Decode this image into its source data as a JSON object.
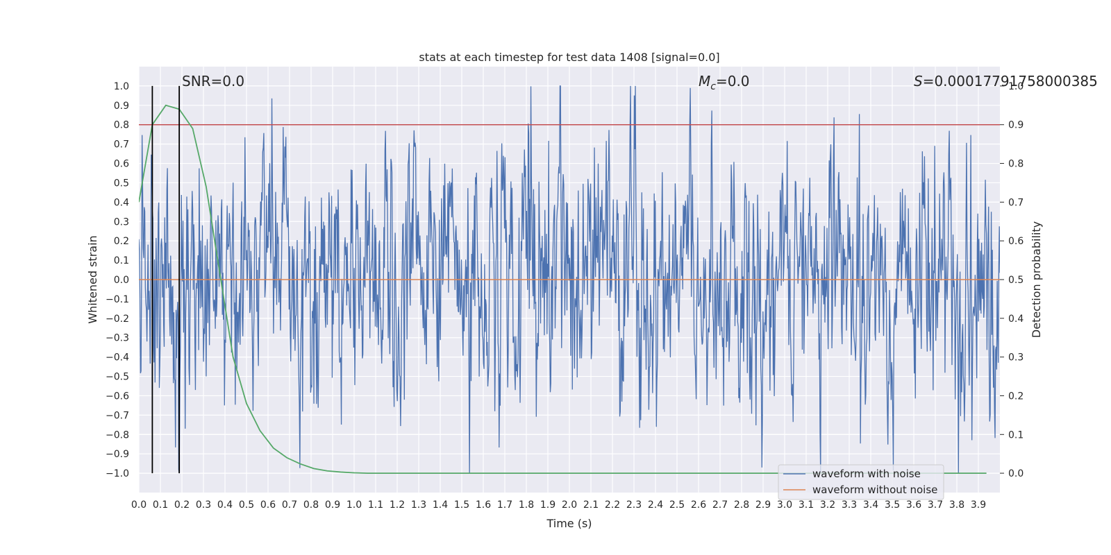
{
  "chart_data": {
    "type": "line",
    "title": "stats at each timestep for test data 1408 [signal=0.0]",
    "xlabel": "Time (s)",
    "ylabel": "Whitened strain",
    "y2label": "Detection probability",
    "xlim": [
      0.0,
      4.0
    ],
    "ylim": [
      -1.1,
      1.1
    ],
    "y2lim": [
      -0.05,
      1.05
    ],
    "grid": true,
    "legend_position": "bottom-right",
    "x_ticks": [
      0.0,
      0.1,
      0.2,
      0.3,
      0.4,
      0.5,
      0.6,
      0.7,
      0.8,
      0.9,
      1.0,
      1.1,
      1.2,
      1.3,
      1.4,
      1.5,
      1.6,
      1.7,
      1.8,
      1.9,
      2.0,
      2.1,
      2.2,
      2.3,
      2.4,
      2.5,
      2.6,
      2.7,
      2.8,
      2.9,
      3.0,
      3.1,
      3.2,
      3.3,
      3.4,
      3.5,
      3.6,
      3.7,
      3.8,
      3.9
    ],
    "x_tick_labels": [
      "0.0",
      "0.1",
      "0.2",
      "0.3",
      "0.4",
      "0.5",
      "0.6",
      "0.7",
      "0.8",
      "0.9",
      "1.0",
      "1.1",
      "1.2",
      "1.3",
      "1.4",
      "1.5",
      "1.6",
      "1.7",
      "1.8",
      "1.9",
      "2.0",
      "2.1",
      "2.2",
      "2.3",
      "2.4",
      "2.5",
      "2.6",
      "2.7",
      "2.8",
      "2.9",
      "3.0",
      "3.1",
      "3.2",
      "3.3",
      "3.4",
      "3.5",
      "3.6",
      "3.7",
      "3.8",
      "3.9"
    ],
    "y_ticks": [
      1.0,
      0.9,
      0.8,
      0.7,
      0.6,
      0.5,
      0.4,
      0.3,
      0.2,
      0.1,
      0.0,
      -0.1,
      -0.2,
      -0.3,
      -0.4,
      -0.5,
      -0.6,
      -0.7,
      -0.8,
      -0.9,
      -1.0
    ],
    "y_tick_labels": [
      "1.0",
      "0.9",
      "0.8",
      "0.7",
      "0.6",
      "0.5",
      "0.4",
      "0.3",
      "0.2",
      "0.1",
      "0.0",
      "−0.1",
      "−0.2",
      "−0.3",
      "−0.4",
      "−0.5",
      "−0.6",
      "−0.7",
      "−0.8",
      "−0.9",
      "−1.0"
    ],
    "y2_ticks": [
      1.0,
      0.9,
      0.8,
      0.7,
      0.6,
      0.5,
      0.4,
      0.3,
      0.2,
      0.1,
      0.0
    ],
    "y2_tick_labels": [
      "1.0",
      "0.9",
      "0.8",
      "0.7",
      "0.6",
      "0.5",
      "0.4",
      "0.3",
      "0.2",
      "0.1",
      "0.0"
    ],
    "series": [
      {
        "name": "waveform with noise",
        "color": "#4c72b0",
        "axis": "left",
        "style": "noise",
        "t_start": 0.0,
        "t_end": 4.0,
        "n_samples": 1600,
        "seed": 1408,
        "typical_amplitude": 0.35,
        "max_abs": 1.0
      },
      {
        "name": "waveform without noise",
        "color": "#dd8452",
        "axis": "left",
        "style": "line",
        "x": [
          0.0,
          4.0
        ],
        "y": [
          0.0,
          0.0
        ]
      },
      {
        "name": "detection probability",
        "color": "#55a868",
        "axis": "right",
        "style": "line",
        "x": [
          0.0,
          0.0625,
          0.125,
          0.1875,
          0.25,
          0.3125,
          0.375,
          0.4375,
          0.5,
          0.5625,
          0.625,
          0.6875,
          0.75,
          0.8125,
          0.875,
          0.9375,
          1.0,
          1.0625,
          1.125,
          1.5,
          2.0,
          2.5,
          3.0,
          3.5,
          3.9375
        ],
        "y": [
          0.7,
          0.9,
          0.95,
          0.94,
          0.89,
          0.74,
          0.52,
          0.3,
          0.18,
          0.11,
          0.065,
          0.04,
          0.024,
          0.012,
          0.006,
          0.003,
          0.001,
          0.0,
          0.0,
          0.0,
          0.0,
          0.0,
          0.0,
          0.0,
          0.0
        ]
      }
    ],
    "threshold": {
      "axis": "right",
      "value": 0.9,
      "color": "#c44e52"
    },
    "vertical_markers": {
      "x": [
        0.0625,
        0.1875
      ],
      "ymin": -1.0,
      "ymax": 1.0,
      "color": "#000000"
    },
    "annotations": [
      {
        "id": "snr",
        "text": "SNR=0.0",
        "x": 0.2,
        "y": 1.0
      },
      {
        "id": "mc",
        "text_prefix": "M",
        "text_sub": "c",
        "text_suffix": "=0.0",
        "x": 2.6,
        "y": 1.0
      },
      {
        "id": "s",
        "text_prefix": "S",
        "text_suffix": "=0.00017791758000385",
        "x": 3.6,
        "y": 1.0
      }
    ]
  }
}
